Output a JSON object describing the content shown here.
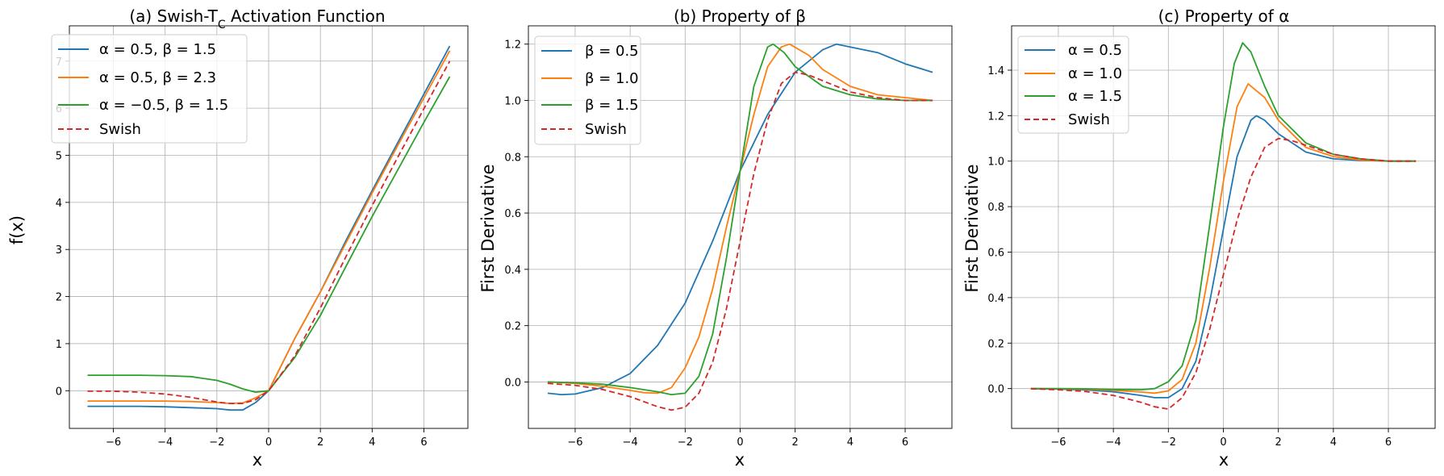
{
  "chart_data": [
    {
      "type": "line",
      "title": "(a) Swish-T",
      "title_subscript": "C",
      "title_suffix": " Activation Function",
      "xlabel": "x",
      "ylabel": "f(x)",
      "xlim": [
        -7.7,
        7.7
      ],
      "ylim": [
        -0.8,
        7.75
      ],
      "xticks": [
        -6,
        -4,
        -2,
        0,
        2,
        4,
        6
      ],
      "yticks": [
        0,
        1,
        2,
        3,
        4,
        5,
        6,
        7
      ],
      "xtick_labels": [
        "−6",
        "−4",
        "−2",
        "0",
        "2",
        "4",
        "6"
      ],
      "ytick_labels": [
        "0",
        "1",
        "2",
        "3",
        "4",
        "5",
        "6",
        "7"
      ],
      "grid": true,
      "legend_position": "upper-left",
      "series": [
        {
          "name": "α = 0.5, β = 1.5",
          "color": "#1f77b4",
          "dash": "solid",
          "x": [
            -7,
            -6,
            -5,
            -4,
            -3,
            -2,
            -1.5,
            -1,
            -0.5,
            0,
            1,
            2,
            3,
            4,
            5,
            6,
            7
          ],
          "y": [
            -0.33,
            -0.33,
            -0.33,
            -0.34,
            -0.36,
            -0.38,
            -0.41,
            -0.41,
            -0.25,
            0.0,
            1.1,
            2.1,
            3.2,
            4.25,
            5.28,
            6.3,
            7.32
          ]
        },
        {
          "name": "α = 0.5, β = 2.3",
          "color": "#ff7f0e",
          "dash": "solid",
          "x": [
            -7,
            -6,
            -5,
            -4,
            -3,
            -2,
            -1.5,
            -1,
            -0.5,
            0,
            1,
            2,
            3,
            4,
            5,
            6,
            7
          ],
          "y": [
            -0.22,
            -0.22,
            -0.22,
            -0.22,
            -0.23,
            -0.25,
            -0.27,
            -0.26,
            -0.15,
            0.0,
            1.1,
            2.1,
            3.15,
            4.2,
            5.22,
            6.22,
            7.22
          ]
        },
        {
          "name": "α = −0.5, β = 1.5",
          "color": "#2ca02c",
          "dash": "solid",
          "x": [
            -7,
            -6,
            -5,
            -4,
            -3,
            -2,
            -1.5,
            -1,
            -0.5,
            0,
            1,
            2,
            3,
            4,
            5,
            6,
            7
          ],
          "y": [
            0.33,
            0.33,
            0.33,
            0.32,
            0.3,
            0.22,
            0.14,
            0.04,
            -0.03,
            0.0,
            0.7,
            1.6,
            2.65,
            3.7,
            4.7,
            5.7,
            6.67
          ]
        },
        {
          "name": "Swish",
          "color": "#d62728",
          "dash": "dashed",
          "x": [
            -7,
            -6,
            -5,
            -4,
            -3,
            -2,
            -1.5,
            -1,
            -0.5,
            0,
            1,
            2,
            3,
            4,
            5,
            6,
            7
          ],
          "y": [
            -0.01,
            -0.01,
            -0.03,
            -0.07,
            -0.14,
            -0.24,
            -0.27,
            -0.27,
            -0.19,
            0.0,
            0.73,
            1.76,
            2.86,
            3.93,
            4.97,
            5.99,
            7.0
          ]
        }
      ]
    },
    {
      "type": "line",
      "title": "(b) Property of β",
      "xlabel": "x",
      "ylabel": "First Derivative",
      "xlim": [
        -7.7,
        7.7
      ],
      "ylim": [
        -0.165,
        1.265
      ],
      "xticks": [
        -6,
        -4,
        -2,
        0,
        2,
        4,
        6
      ],
      "yticks": [
        0.0,
        0.2,
        0.4,
        0.6,
        0.8,
        1.0,
        1.2
      ],
      "xtick_labels": [
        "−6",
        "−4",
        "−2",
        "0",
        "2",
        "4",
        "6"
      ],
      "ytick_labels": [
        "0.0",
        "0.2",
        "0.4",
        "0.6",
        "0.8",
        "1.0",
        "1.2"
      ],
      "grid": true,
      "legend_position": "upper-left",
      "series": [
        {
          "name": "β = 0.5",
          "color": "#1f77b4",
          "dash": "solid",
          "x": [
            -7,
            -6.5,
            -6,
            -5,
            -4,
            -3,
            -2,
            -1,
            0,
            1,
            2,
            3,
            3.5,
            4,
            5,
            6,
            7
          ],
          "y": [
            -0.04,
            -0.045,
            -0.043,
            -0.02,
            0.03,
            0.13,
            0.28,
            0.5,
            0.75,
            0.95,
            1.1,
            1.18,
            1.2,
            1.19,
            1.17,
            1.13,
            1.1
          ]
        },
        {
          "name": "β = 1.0",
          "color": "#ff7f0e",
          "dash": "solid",
          "x": [
            -7,
            -6,
            -5,
            -4,
            -3.5,
            -3,
            -2.5,
            -2,
            -1.5,
            -1,
            -0.5,
            0,
            0.5,
            1,
            1.5,
            1.8,
            2.5,
            3,
            4,
            5,
            6,
            7
          ],
          "y": [
            0.0,
            -0.005,
            -0.015,
            -0.03,
            -0.038,
            -0.04,
            -0.02,
            0.05,
            0.16,
            0.33,
            0.55,
            0.75,
            0.95,
            1.12,
            1.19,
            1.2,
            1.16,
            1.11,
            1.05,
            1.02,
            1.01,
            1.0
          ]
        },
        {
          "name": "β = 1.5",
          "color": "#2ca02c",
          "dash": "solid",
          "x": [
            -7,
            -6,
            -5,
            -4,
            -3,
            -2.5,
            -2,
            -1.5,
            -1,
            -0.5,
            0,
            0.5,
            1,
            1.2,
            1.6,
            2,
            3,
            4,
            5,
            6,
            7
          ],
          "y": [
            0.0,
            -0.003,
            -0.008,
            -0.02,
            -0.035,
            -0.045,
            -0.04,
            0.02,
            0.17,
            0.44,
            0.75,
            1.05,
            1.19,
            1.2,
            1.17,
            1.12,
            1.05,
            1.02,
            1.005,
            1.0,
            1.0
          ]
        },
        {
          "name": "Swish",
          "color": "#d62728",
          "dash": "dashed",
          "x": [
            -7,
            -6,
            -5,
            -4,
            -3,
            -2.5,
            -2,
            -1.5,
            -1,
            -0.5,
            0,
            0.5,
            1,
            1.5,
            2,
            2.5,
            3,
            4,
            5,
            6,
            7
          ],
          "y": [
            -0.005,
            -0.012,
            -0.027,
            -0.052,
            -0.088,
            -0.1,
            -0.09,
            -0.04,
            0.07,
            0.26,
            0.5,
            0.74,
            0.93,
            1.06,
            1.1,
            1.09,
            1.07,
            1.03,
            1.01,
            1.0,
            1.0
          ]
        }
      ]
    },
    {
      "type": "line",
      "title": "(c) Property of α",
      "xlabel": "x",
      "ylabel": "First Derivative",
      "xlim": [
        -7.7,
        7.7
      ],
      "ylim": [
        -0.175,
        1.595
      ],
      "xticks": [
        -6,
        -4,
        -2,
        0,
        2,
        4,
        6
      ],
      "yticks": [
        0.0,
        0.2,
        0.4,
        0.6,
        0.8,
        1.0,
        1.2,
        1.4
      ],
      "xtick_labels": [
        "−6",
        "−4",
        "−2",
        "0",
        "2",
        "4",
        "6"
      ],
      "ytick_labels": [
        "0.0",
        "0.2",
        "0.4",
        "0.6",
        "0.8",
        "1.0",
        "1.2",
        "1.4"
      ],
      "grid": true,
      "legend_position": "upper-left",
      "series": [
        {
          "name": "α = 0.5",
          "color": "#1f77b4",
          "dash": "solid",
          "x": [
            -7,
            -6,
            -5,
            -4,
            -3,
            -2.5,
            -2,
            -1.5,
            -1,
            -0.5,
            0,
            0.5,
            1,
            1.2,
            1.5,
            2,
            3,
            4,
            5,
            6,
            7
          ],
          "y": [
            0.0,
            -0.002,
            -0.006,
            -0.014,
            -0.03,
            -0.04,
            -0.04,
            0.0,
            0.12,
            0.38,
            0.7,
            1.02,
            1.18,
            1.2,
            1.18,
            1.12,
            1.04,
            1.01,
            1.003,
            1.0,
            1.0
          ]
        },
        {
          "name": "α = 1.0",
          "color": "#ff7f0e",
          "dash": "solid",
          "x": [
            -7,
            -6,
            -5,
            -4,
            -3,
            -2.5,
            -2,
            -1.5,
            -1,
            -0.5,
            0,
            0.5,
            0.9,
            1.5,
            2,
            3,
            4,
            5,
            6,
            7
          ],
          "y": [
            0.0,
            -0.001,
            -0.003,
            -0.008,
            -0.015,
            -0.02,
            -0.01,
            0.04,
            0.2,
            0.53,
            0.91,
            1.24,
            1.34,
            1.28,
            1.18,
            1.06,
            1.02,
            1.005,
            1.0,
            1.0
          ]
        },
        {
          "name": "α = 1.5",
          "color": "#2ca02c",
          "dash": "solid",
          "x": [
            -7,
            -6,
            -5,
            -4,
            -3,
            -2.5,
            -2,
            -1.5,
            -1,
            -0.5,
            0,
            0.4,
            0.7,
            1,
            1.5,
            2,
            3,
            4,
            5,
            6,
            7
          ],
          "y": [
            0.0,
            0.0,
            -0.001,
            -0.004,
            -0.005,
            0.0,
            0.03,
            0.1,
            0.3,
            0.72,
            1.15,
            1.43,
            1.52,
            1.48,
            1.33,
            1.2,
            1.08,
            1.03,
            1.01,
            1.0,
            1.0
          ]
        },
        {
          "name": "Swish",
          "color": "#d62728",
          "dash": "dashed",
          "x": [
            -7,
            -6,
            -5,
            -4,
            -3,
            -2.5,
            -2,
            -1.5,
            -1,
            -0.5,
            0,
            0.5,
            1,
            1.5,
            2,
            2.5,
            3,
            4,
            5,
            6,
            7
          ],
          "y": [
            -0.001,
            -0.005,
            -0.013,
            -0.03,
            -0.06,
            -0.08,
            -0.09,
            -0.04,
            0.07,
            0.26,
            0.5,
            0.74,
            0.93,
            1.06,
            1.1,
            1.09,
            1.07,
            1.03,
            1.01,
            1.0,
            1.0
          ]
        }
      ]
    }
  ]
}
